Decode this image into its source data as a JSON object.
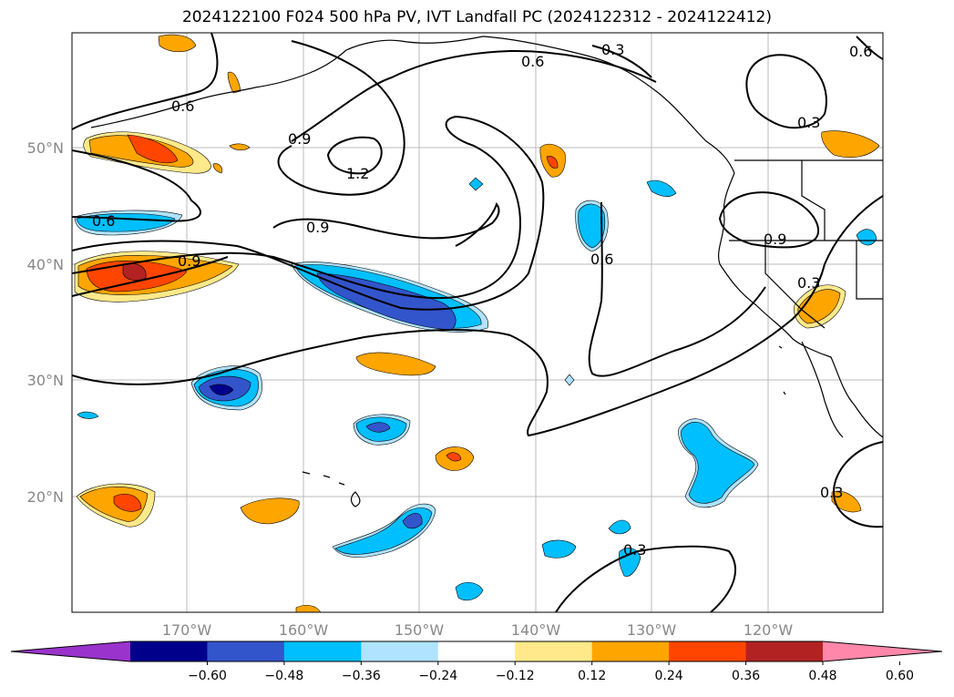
{
  "title": "2024122100 F024 500 hPa PV, IVT Landfall PC (2024122312 - 2024122412)",
  "lon_labels": [
    "170°W",
    "160°W",
    "150°W",
    "140°W",
    "130°W",
    "120°W"
  ],
  "lat_labels": [
    "50°N",
    "40°N",
    "30°N",
    "20°N"
  ],
  "contour_labels": [
    "0.3",
    "0.6",
    "0.6",
    "0.6",
    "0.9",
    "1.2",
    "0.9",
    "0.9",
    "0.6",
    "0.9",
    "0.3",
    "0.3",
    "0.3",
    "0.6",
    "0.3"
  ],
  "colorbar": {
    "ticks": [
      "−0.60",
      "−0.48",
      "−0.36",
      "−0.24",
      "−0.12",
      "0.12",
      "0.24",
      "0.36",
      "0.48",
      "0.60"
    ],
    "colors": [
      "#9933cc",
      "#00008b",
      "#3355cc",
      "#00bfff",
      "#afe3ff",
      "#ffffff",
      "#ffe98a",
      "#ffa500",
      "#ff4500",
      "#b22222",
      "#ff88aa"
    ]
  }
}
